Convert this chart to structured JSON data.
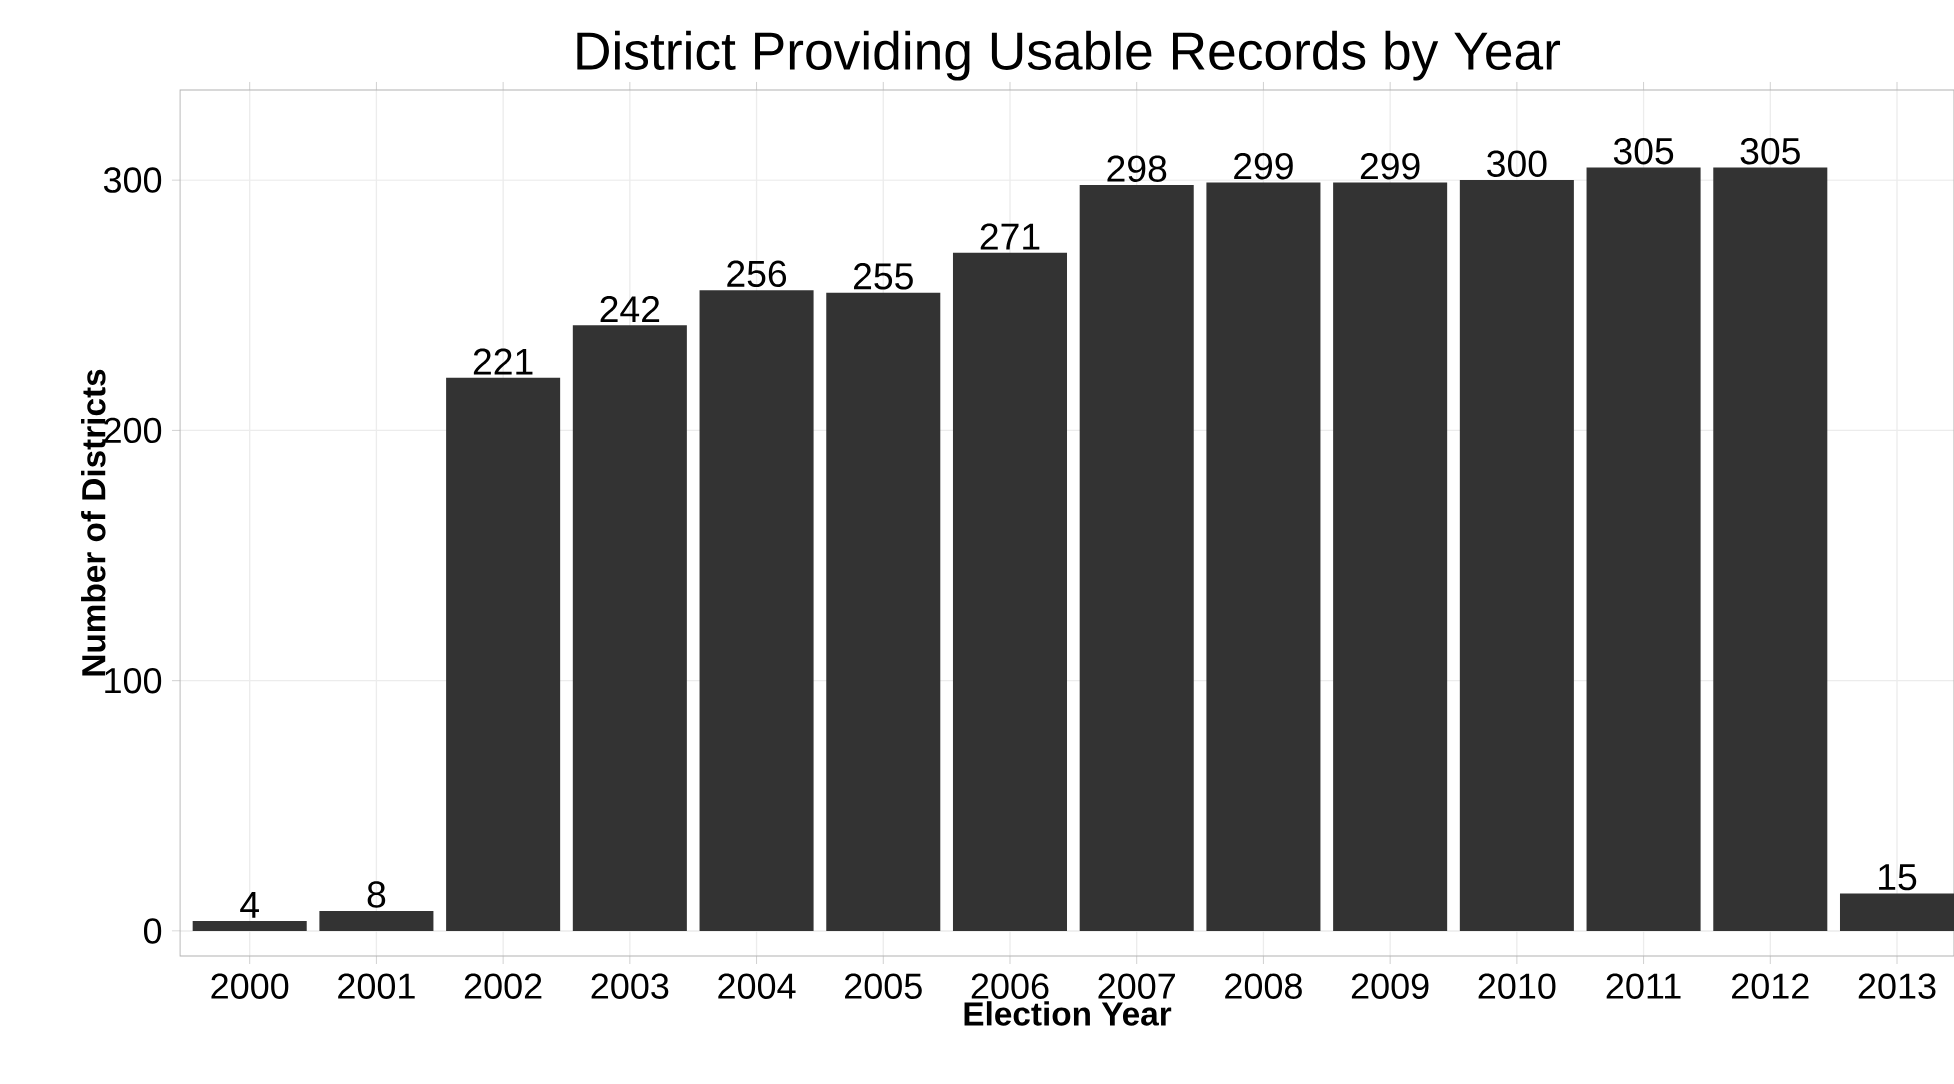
{
  "chart_data": {
    "type": "bar",
    "title": "District Providing Usable Records by Year",
    "xlabel": "Election Year",
    "ylabel": "Number of Districts",
    "categories": [
      "2000",
      "2001",
      "2002",
      "2003",
      "2004",
      "2005",
      "2006",
      "2007",
      "2008",
      "2009",
      "2010",
      "2011",
      "2012",
      "2013"
    ],
    "values": [
      4,
      8,
      221,
      242,
      256,
      255,
      271,
      298,
      299,
      299,
      300,
      305,
      305,
      15
    ],
    "color": "#333333",
    "ylim": [
      -10,
      336
    ],
    "yticks": [
      0,
      100,
      200,
      300
    ],
    "grid": true,
    "data_labels": true
  }
}
